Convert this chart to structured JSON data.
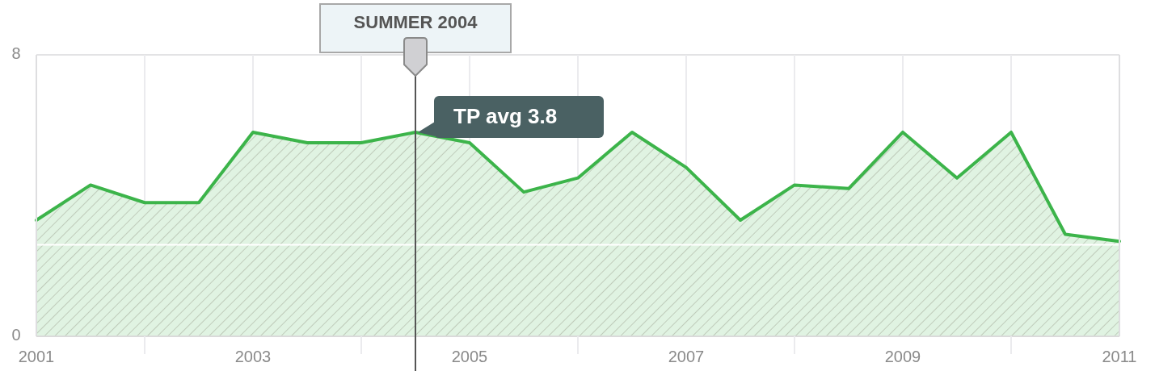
{
  "chart_data": {
    "type": "area",
    "x": [
      2001,
      2001.5,
      2002,
      2002.5,
      2003,
      2003.5,
      2004,
      2004.5,
      2005,
      2005.5,
      2006,
      2006.5,
      2007,
      2007.5,
      2008,
      2008.5,
      2009,
      2009.5,
      2010,
      2010.5,
      2011
    ],
    "values": [
      3.3,
      4.3,
      3.8,
      3.8,
      5.8,
      5.5,
      5.5,
      5.8,
      5.5,
      4.1,
      4.5,
      5.8,
      4.8,
      3.3,
      4.3,
      4.2,
      5.8,
      4.5,
      5.8,
      2.9,
      2.7
    ],
    "color": "#3cb44a",
    "xlim": [
      2001,
      2011
    ],
    "ylim": [
      0,
      8
    ],
    "xticks": [
      2001,
      {
        "value": 2002,
        "label": null
      },
      2003,
      {
        "value": 2004,
        "label": null
      },
      2005,
      {
        "value": 2006,
        "label": null
      },
      2007,
      {
        "value": 2008,
        "label": null
      },
      2009,
      {
        "value": 2010,
        "label": null
      },
      2011
    ],
    "yticks": [
      0,
      8
    ],
    "grid": true,
    "ref_lines": [
      {
        "axis": "x",
        "value": 2004.5,
        "label": "SUMMER 2004",
        "color": "#555555"
      },
      {
        "axis": "y",
        "value": 2.6,
        "color": "#ffffff"
      }
    ],
    "annotations": [
      {
        "text": "TP avg 3.8",
        "x": 2004.5,
        "y": 5.8
      }
    ]
  }
}
